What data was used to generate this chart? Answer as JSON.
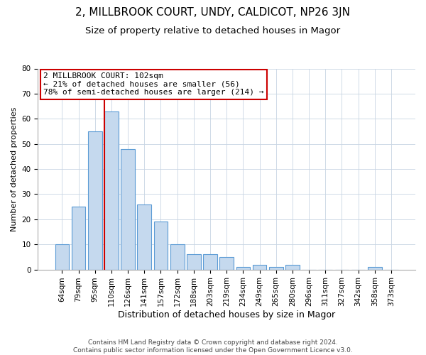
{
  "title": "2, MILLBROOK COURT, UNDY, CALDICOT, NP26 3JN",
  "subtitle": "Size of property relative to detached houses in Magor",
  "xlabel": "Distribution of detached houses by size in Magor",
  "ylabel": "Number of detached properties",
  "categories": [
    "64sqm",
    "79sqm",
    "95sqm",
    "110sqm",
    "126sqm",
    "141sqm",
    "157sqm",
    "172sqm",
    "188sqm",
    "203sqm",
    "219sqm",
    "234sqm",
    "249sqm",
    "265sqm",
    "280sqm",
    "296sqm",
    "311sqm",
    "327sqm",
    "342sqm",
    "358sqm",
    "373sqm"
  ],
  "values": [
    10,
    25,
    55,
    63,
    48,
    26,
    19,
    10,
    6,
    6,
    5,
    1,
    2,
    1,
    2,
    0,
    0,
    0,
    0,
    1,
    0
  ],
  "bar_color": "#c5d9ee",
  "bar_edge_color": "#5b9bd5",
  "background_color": "#ffffff",
  "grid_color": "#c8d4e3",
  "vline_color": "#cc0000",
  "ylim": [
    0,
    80
  ],
  "yticks": [
    0,
    10,
    20,
    30,
    40,
    50,
    60,
    70,
    80
  ],
  "annotation_title": "2 MILLBROOK COURT: 102sqm",
  "annotation_line1": "← 21% of detached houses are smaller (56)",
  "annotation_line2": "78% of semi-detached houses are larger (214) →",
  "annotation_box_color": "#ffffff",
  "annotation_box_edge": "#cc0000",
  "footer_line1": "Contains HM Land Registry data © Crown copyright and database right 2024.",
  "footer_line2": "Contains public sector information licensed under the Open Government Licence v3.0.",
  "title_fontsize": 11,
  "subtitle_fontsize": 9.5,
  "xlabel_fontsize": 9,
  "ylabel_fontsize": 8,
  "tick_fontsize": 7.5,
  "annotation_fontsize": 8,
  "footer_fontsize": 6.5
}
